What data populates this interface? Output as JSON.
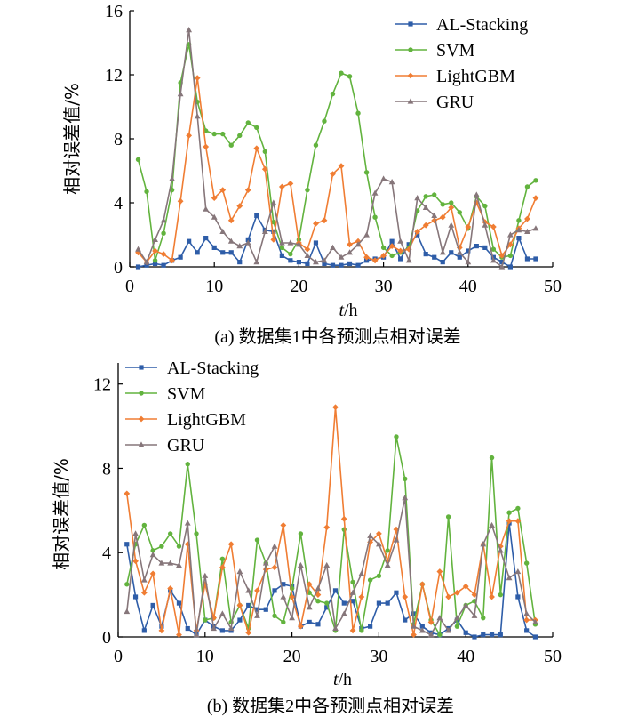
{
  "chart_data": [
    {
      "type": "line",
      "title": "",
      "caption": "(a) 数据集1中各预测点相对误差",
      "xlabel_italic": "t",
      "xlabel_rest": "/h",
      "ylabel": "相对误差值/%",
      "xlim": [
        0,
        50
      ],
      "ylim": [
        0,
        16
      ],
      "xticks": [
        0,
        10,
        20,
        30,
        40,
        50
      ],
      "yticks": [
        0,
        4,
        8,
        12,
        16
      ],
      "grid": false,
      "legend": "top-right",
      "x": [
        1,
        2,
        3,
        4,
        5,
        6,
        7,
        8,
        9,
        10,
        11,
        12,
        13,
        14,
        15,
        16,
        17,
        18,
        19,
        20,
        21,
        22,
        23,
        24,
        25,
        26,
        27,
        28,
        29,
        30,
        31,
        32,
        33,
        34,
        35,
        36,
        37,
        38,
        39,
        40,
        41,
        42,
        43,
        44,
        45,
        46,
        47,
        48
      ],
      "series": [
        {
          "name": "AL-Stacking",
          "color": "#2e5da8",
          "marker": "square",
          "values": [
            0.0,
            0.1,
            0.2,
            0.1,
            0.4,
            0.6,
            1.6,
            0.9,
            1.8,
            1.2,
            0.9,
            0.9,
            0.3,
            1.7,
            3.2,
            2.3,
            2.2,
            0.7,
            0.4,
            0.3,
            0.2,
            1.5,
            0.2,
            0.1,
            0.1,
            0.2,
            0.1,
            0.4,
            0.5,
            0.6,
            1.6,
            0.5,
            1.4,
            2.0,
            0.8,
            0.6,
            0.3,
            0.9,
            0.6,
            1.0,
            1.3,
            1.2,
            0.6,
            0.3,
            0.0,
            1.8,
            0.5,
            0.5
          ]
        },
        {
          "name": "SVM",
          "color": "#62b33e",
          "marker": "circle",
          "values": [
            6.7,
            4.7,
            0.4,
            2.1,
            4.8,
            11.5,
            13.9,
            10.3,
            8.5,
            8.3,
            8.3,
            7.6,
            8.2,
            9.0,
            8.7,
            7.2,
            2.8,
            1.2,
            0.8,
            1.7,
            4.8,
            7.6,
            9.1,
            10.8,
            12.1,
            11.9,
            9.6,
            5.9,
            3.1,
            1.2,
            0.7,
            0.9,
            1.2,
            3.5,
            4.4,
            4.5,
            3.9,
            4.0,
            3.4,
            2.4,
            4.4,
            3.8,
            1.1,
            0.6,
            0.7,
            2.9,
            5.0,
            5.4
          ]
        },
        {
          "name": "LightGBM",
          "color": "#f07d33",
          "marker": "diamond",
          "values": [
            0.9,
            0.3,
            1.0,
            0.8,
            0.4,
            4.1,
            8.2,
            11.8,
            7.5,
            4.3,
            4.8,
            2.9,
            3.8,
            4.8,
            7.4,
            6.1,
            1.7,
            5.0,
            5.2,
            1.5,
            1.1,
            2.7,
            2.9,
            5.8,
            6.3,
            1.4,
            1.6,
            0.6,
            0.4,
            0.7,
            1.3,
            1.0,
            1.1,
            2.2,
            2.6,
            2.9,
            3.1,
            3.7,
            1.2,
            2.5,
            4.0,
            2.8,
            2.5,
            0.7,
            1.4,
            2.4,
            3.0,
            4.3
          ]
        },
        {
          "name": "GRU",
          "color": "#86767a",
          "marker": "triangle",
          "values": [
            1.1,
            0.3,
            1.7,
            2.9,
            5.5,
            10.8,
            14.8,
            9.4,
            3.6,
            3.1,
            2.2,
            1.6,
            1.3,
            1.5,
            0.3,
            2.2,
            4.0,
            1.5,
            1.5,
            1.4,
            0.7,
            0.3,
            0.4,
            1.2,
            0.6,
            0.9,
            1.4,
            2.0,
            4.6,
            5.5,
            5.3,
            1.6,
            0.4,
            4.3,
            3.7,
            3.2,
            0.9,
            2.6,
            0.9,
            0.3,
            4.5,
            2.6,
            0.4,
            0.0,
            2.0,
            2.3,
            2.2,
            2.4
          ]
        }
      ]
    },
    {
      "type": "line",
      "title": "",
      "caption": "(b) 数据集2中各预测点相对误差",
      "xlabel_italic": "t",
      "xlabel_rest": "/h",
      "ylabel": "相对误差值/%",
      "xlim": [
        0,
        50
      ],
      "ylim": [
        0,
        13
      ],
      "xticks": [
        0,
        10,
        20,
        30,
        40,
        50
      ],
      "yticks": [
        0,
        4,
        8,
        12
      ],
      "grid": false,
      "legend": "top-left",
      "x": [
        1,
        2,
        3,
        4,
        5,
        6,
        7,
        8,
        9,
        10,
        11,
        12,
        13,
        14,
        15,
        16,
        17,
        18,
        19,
        20,
        21,
        22,
        23,
        24,
        25,
        26,
        27,
        28,
        29,
        30,
        31,
        32,
        33,
        34,
        35,
        36,
        37,
        38,
        39,
        40,
        41,
        42,
        43,
        44,
        45,
        46,
        47,
        48
      ],
      "series": [
        {
          "name": "AL-Stacking",
          "color": "#2e5da8",
          "marker": "square",
          "values": [
            4.4,
            1.9,
            0.3,
            1.5,
            0.5,
            2.2,
            1.6,
            0.4,
            0.1,
            0.8,
            0.5,
            0.3,
            0.3,
            0.8,
            1.5,
            1.3,
            1.3,
            2.2,
            2.5,
            2.4,
            0.5,
            0.7,
            0.6,
            1.4,
            2.2,
            1.6,
            1.7,
            0.4,
            0.5,
            1.6,
            1.6,
            2.1,
            0.8,
            1.1,
            0.5,
            0.2,
            0.1,
            0.4,
            0.8,
            0.2,
            0.0,
            0.1,
            0.1,
            0.1,
            5.4,
            1.9,
            0.3,
            0.0
          ]
        },
        {
          "name": "SVM",
          "color": "#62b33e",
          "marker": "circle",
          "values": [
            2.5,
            4.4,
            5.3,
            4.1,
            4.3,
            4.9,
            4.3,
            8.2,
            4.9,
            0.8,
            0.9,
            3.7,
            0.7,
            1.5,
            0.4,
            4.6,
            3.5,
            1.0,
            0.7,
            2.3,
            4.9,
            2.1,
            1.7,
            1.6,
            0.3,
            5.1,
            2.6,
            0.3,
            2.7,
            2.9,
            4.1,
            9.5,
            7.5,
            0.6,
            2.5,
            0.8,
            0.1,
            5.7,
            0.5,
            1.5,
            1.7,
            0.9,
            8.5,
            2.0,
            5.9,
            6.1,
            3.5,
            0.6
          ]
        },
        {
          "name": "LightGBM",
          "color": "#f07d33",
          "marker": "diamond",
          "values": [
            6.8,
            3.6,
            2.1,
            3.0,
            0.3,
            2.3,
            0.1,
            4.4,
            0.3,
            2.5,
            0.9,
            3.3,
            4.4,
            1.5,
            0.2,
            2.2,
            3.2,
            3.3,
            5.3,
            1.9,
            0.5,
            2.5,
            2.0,
            5.2,
            10.9,
            5.6,
            0.3,
            1.9,
            4.5,
            4.9,
            3.6,
            5.1,
            1.9,
            0.1,
            2.5,
            0.7,
            3.1,
            1.9,
            2.1,
            2.4,
            2.0,
            4.4,
            1.9,
            4.3,
            5.5,
            5.5,
            0.8,
            0.8
          ]
        },
        {
          "name": "GRU",
          "color": "#86767a",
          "marker": "triangle",
          "values": [
            1.2,
            4.9,
            2.7,
            3.9,
            3.5,
            3.5,
            3.4,
            5.4,
            0.1,
            2.9,
            0.4,
            1.1,
            0.4,
            3.1,
            2.2,
            1.0,
            3.5,
            4.3,
            1.9,
            0.9,
            3.4,
            1.4,
            2.3,
            3.4,
            0.4,
            1.1,
            2.1,
            3.0,
            4.8,
            4.4,
            3.4,
            4.6,
            6.6,
            0.5,
            0.3,
            0.1,
            0.9,
            0.3,
            0.9,
            1.5,
            1.0,
            4.4,
            5.3,
            4.1,
            2.8,
            3.1,
            1.1,
            0.7
          ]
        }
      ]
    }
  ]
}
